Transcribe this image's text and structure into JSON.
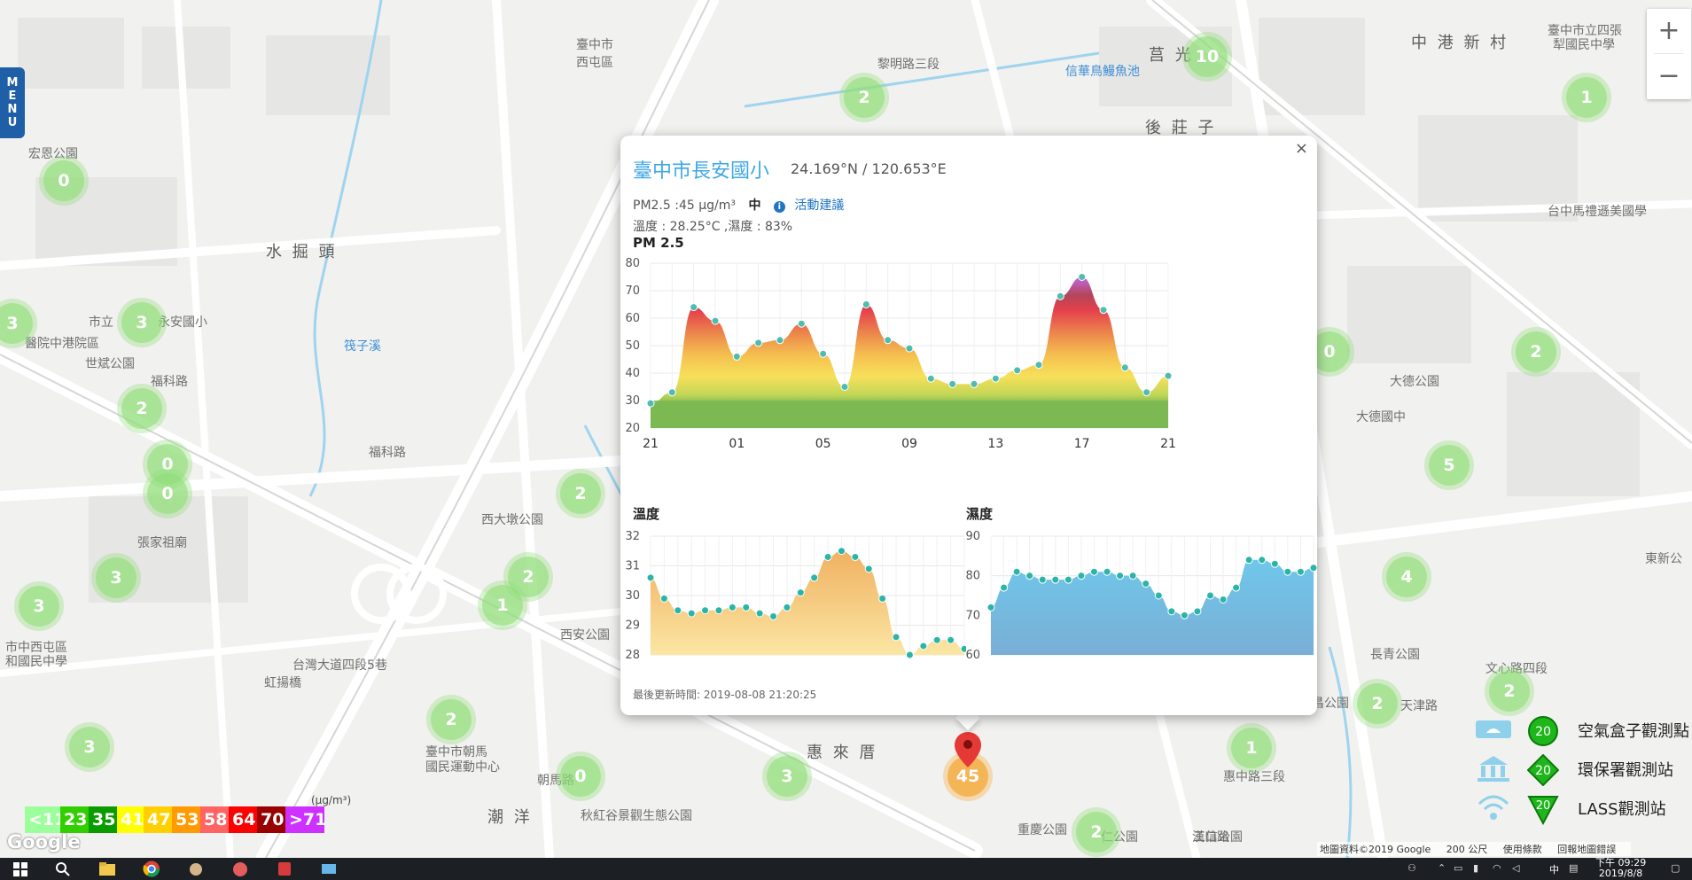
{
  "map": {
    "labels": [
      "宏恩公園",
      "水 掘 頭",
      "永安國小",
      "市立",
      "醫院中港院區",
      "世斌公園",
      "福科路",
      "福科路",
      "張家祖廟",
      "市中西屯區",
      "和國民中學",
      "台灣大道四段5巷",
      "虹揚橋",
      "西大墩公園",
      "西安公園",
      "惠 來 厝",
      "臺中市朝馬",
      "國民運動中心",
      "朝馬路",
      "潮 洋",
      "秋紅谷景觀生態公園",
      "臺中市",
      "西屯區",
      "黎明路三段",
      "信華鳥鰻魚池",
      "莒 光",
      "後 莊 子",
      "中 港 新 村",
      "臺中市立四張",
      "犁國民中學",
      "台中馬禮遜美國學",
      "大德公園",
      "大德國中",
      "長青公園",
      "文心路四段",
      "武昌公園",
      "天津路",
      "重慶公園",
      "三信公園",
      "仁公園",
      "筏子溪",
      "惠中路三段",
      "漢口路",
      "東新公"
    ],
    "clusters": [
      "0",
      "3",
      "3",
      "2",
      "0",
      "0",
      "3",
      "3",
      "1",
      "2",
      "2",
      "2",
      "3",
      "0",
      "3",
      "2",
      "10",
      "1",
      "0",
      "2",
      "5",
      "4",
      "2",
      "2",
      "1",
      "2"
    ],
    "marker_value": "45"
  },
  "menu": {
    "letters": [
      "M",
      "E",
      "N",
      "U"
    ]
  },
  "zoom": {
    "in": "+",
    "out": "−"
  },
  "popup": {
    "close": "×",
    "station_name": "臺中市長安國小",
    "coords": "24.169°N / 120.653°E",
    "pm_text": "PM2.5 :45 μg/m³",
    "pm_level": "中",
    "info_icon": "i",
    "advice": "活動建議",
    "env_text": "溫度 : 28.25°C ,濕度 : 83%",
    "pm_title": "PM 2.5",
    "temp_title": "溫度",
    "hum_title": "濕度",
    "updated": "最後更新時間: 2019-08-08 21:20:25"
  },
  "chart_data": [
    {
      "type": "area",
      "title": "PM 2.5",
      "x": [
        "21",
        "22",
        "23",
        "00",
        "01",
        "02",
        "03",
        "04",
        "05",
        "06",
        "07",
        "08",
        "09",
        "10",
        "11",
        "12",
        "13",
        "14",
        "15",
        "16",
        "17",
        "18",
        "19",
        "20",
        "21"
      ],
      "xticks": [
        "21",
        "01",
        "05",
        "09",
        "13",
        "17",
        "21"
      ],
      "values": [
        29,
        33,
        64,
        59,
        46,
        51,
        52,
        58,
        47,
        35,
        65,
        52,
        49,
        38,
        36,
        36,
        38,
        41,
        43,
        68,
        75,
        63,
        42,
        33,
        39
      ],
      "yticks": [
        20,
        30,
        40,
        50,
        60,
        70,
        80
      ],
      "ylim": [
        20,
        80
      ]
    },
    {
      "type": "area",
      "title": "溫度",
      "values": [
        30.6,
        29.9,
        29.5,
        29.4,
        29.5,
        29.5,
        29.6,
        29.6,
        29.4,
        29.3,
        29.6,
        30.1,
        30.6,
        31.3,
        31.5,
        31.3,
        30.9,
        29.9,
        28.6,
        28.0,
        28.3,
        28.5,
        28.5,
        28.2
      ],
      "yticks": [
        28,
        29,
        30,
        31,
        32
      ],
      "ylim": [
        28,
        32
      ]
    },
    {
      "type": "area",
      "title": "濕度",
      "values": [
        72,
        77,
        81,
        80,
        79,
        79,
        79,
        80,
        81,
        81,
        80,
        80,
        78,
        75,
        71,
        70,
        71,
        75,
        74,
        77,
        84,
        84,
        83,
        81,
        81,
        82
      ],
      "yticks": [
        60,
        70,
        80,
        90
      ],
      "ylim": [
        60,
        90
      ]
    }
  ],
  "scale": {
    "unit": "(μg/m³)",
    "items": [
      {
        "label": "<11",
        "color": "#9cff9c"
      },
      {
        "label": "23",
        "color": "#31cf00"
      },
      {
        "label": "35",
        "color": "#099b00"
      },
      {
        "label": "41",
        "color": "#ffff00"
      },
      {
        "label": "47",
        "color": "#ffcf00"
      },
      {
        "label": "53",
        "color": "#ff9a00"
      },
      {
        "label": "58",
        "color": "#ff6464"
      },
      {
        "label": "64",
        "color": "#ff0000"
      },
      {
        "label": "70",
        "color": "#990000"
      },
      {
        "label": ">71",
        "color": "#ce30ff"
      }
    ]
  },
  "station_legend": [
    {
      "label": "空氣盒子觀測點",
      "badge": "20",
      "icon": "airbox-icon"
    },
    {
      "label": "環保署觀測站",
      "badge": "20",
      "icon": "epa-station-icon"
    },
    {
      "label": "LASS觀測站",
      "badge": "20",
      "icon": "lass-station-icon"
    }
  ],
  "attribution": {
    "map_data": "地圖資料©2019 Google",
    "scale": "200 公尺",
    "terms": "使用條款",
    "report": "回報地圖錯誤"
  },
  "google_logo": "Google",
  "taskbar": {
    "clock_time": "下午 09:29",
    "clock_date": "2019/8/8",
    "ime": "中"
  }
}
